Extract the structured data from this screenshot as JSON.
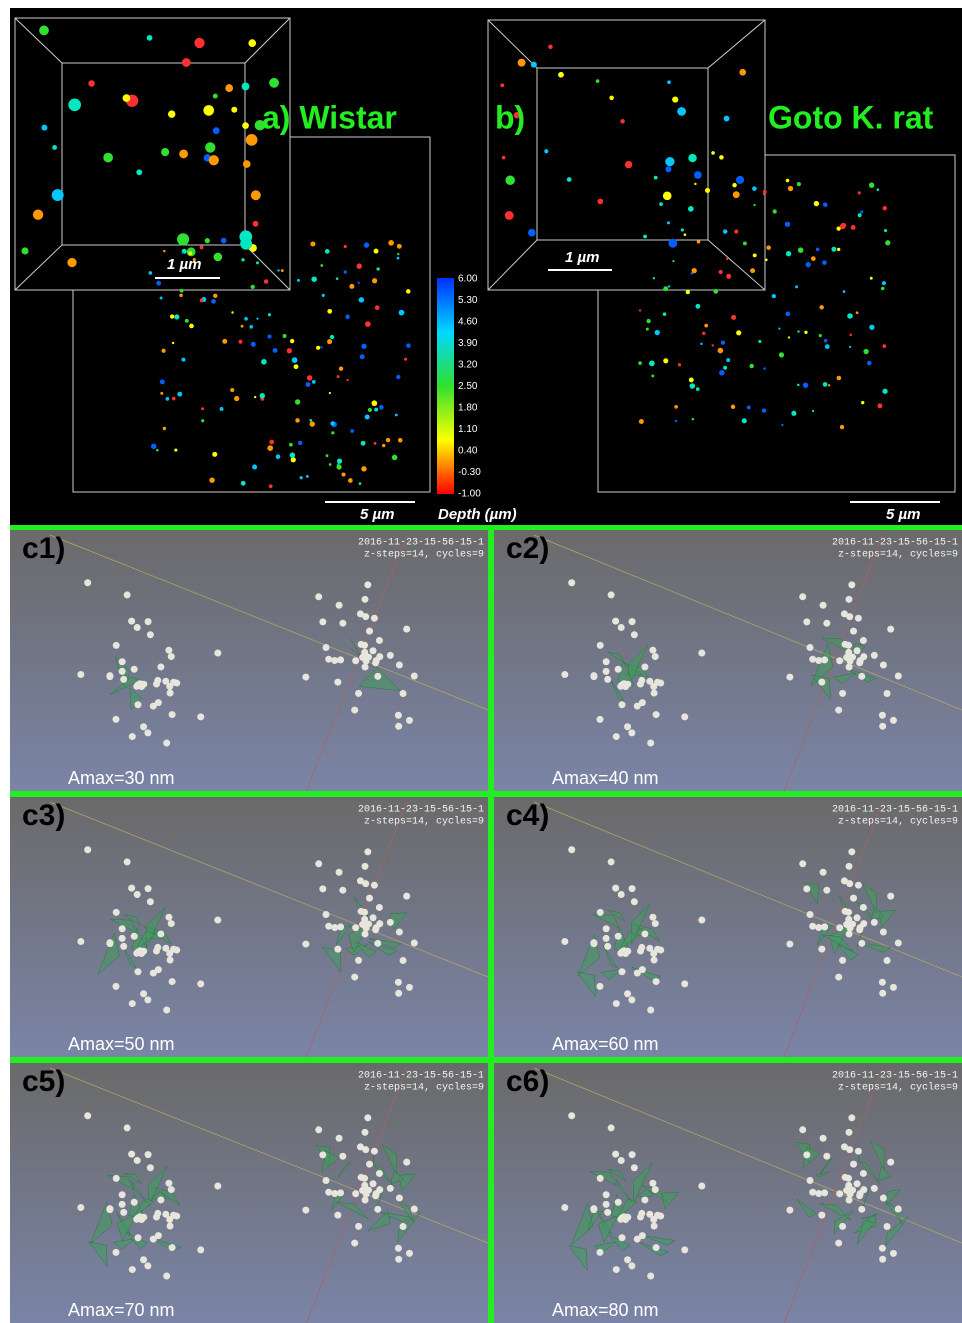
{
  "panel_a": {
    "label": "a) Wistar",
    "inset_scale": "1 µm",
    "scale": "5 µm"
  },
  "panel_b": {
    "label": "b)",
    "name": "Goto K. rat",
    "inset_scale": "1 µm",
    "scale": "5 µm"
  },
  "colorbar": {
    "title": "Depth (µm)",
    "labels": [
      "6.00",
      "5.30",
      "4.60",
      "3.90",
      "3.20",
      "2.50",
      "1.80",
      "1.10",
      "0.40",
      "-0.30",
      "-1.00"
    ]
  },
  "panels_c": [
    {
      "label": "c1)",
      "timestamp": "2016-11-23-15-56-15-1",
      "params": "z-steps=14, cycles=9",
      "amax": "Amax=30 nm"
    },
    {
      "label": "c2)",
      "timestamp": "2016-11-23-15-56-15-1",
      "params": "z-steps=14, cycles=9",
      "amax": "Amax=40 nm"
    },
    {
      "label": "c3)",
      "timestamp": "2016-11-23-15-56-15-1",
      "params": "z-steps=14, cycles=9",
      "amax": "Amax=50 nm"
    },
    {
      "label": "c4)",
      "timestamp": "2016-11-23-15-56-15-1",
      "params": "z-steps=14, cycles=9",
      "amax": "Amax=60 nm"
    },
    {
      "label": "c5)",
      "timestamp": "2016-11-23-15-56-15-1",
      "params": "z-steps=14, cycles=9",
      "amax": "Amax=70 nm"
    },
    {
      "label": "c6)",
      "timestamp": "2016-11-23-15-56-15-1",
      "params": "z-steps=14, cycles=9",
      "amax": "Amax=80 nm"
    }
  ]
}
